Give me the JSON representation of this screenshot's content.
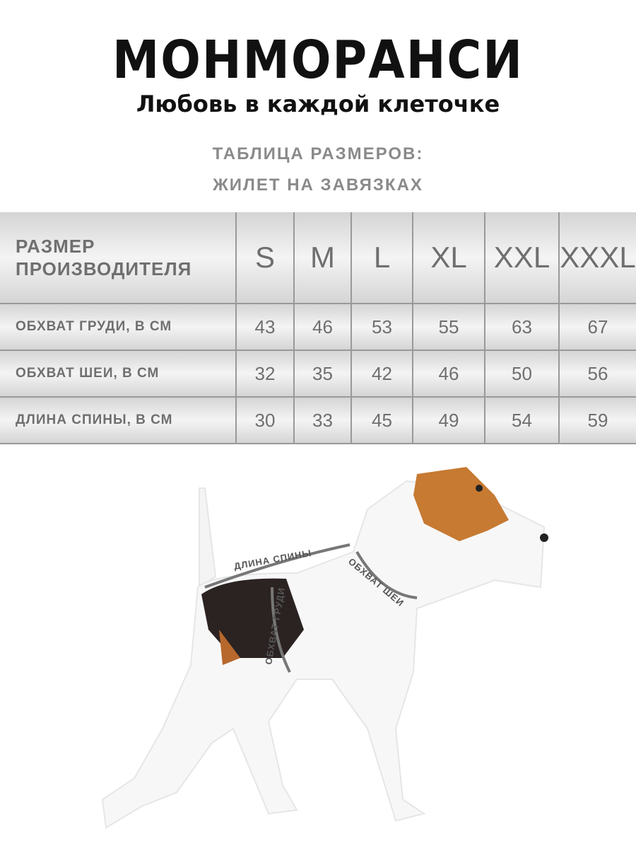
{
  "brand": {
    "name": "МОНМОРАНСИ",
    "tagline": "Любовь в каждой клеточке",
    "dot_colors": [
      "#d62b2b",
      "#1e8a4a"
    ]
  },
  "title": {
    "line1": "ТАБЛИЦА РАЗМЕРОВ:",
    "line2": "ЖИЛЕТ НА ЗАВЯЗКАХ"
  },
  "table": {
    "header_label_line1": "РАЗМЕР",
    "header_label_line2": "ПРОИЗВОДИТЕЛЯ",
    "sizes": [
      "S",
      "M",
      "L",
      "XL",
      "XXL",
      "XXXL"
    ],
    "rows": [
      {
        "label": "ОБХВАТ ГРУДИ, В СМ",
        "values": [
          "43",
          "46",
          "53",
          "55",
          "63",
          "67"
        ]
      },
      {
        "label": "ОБХВАТ ШЕИ, В СМ",
        "values": [
          "32",
          "35",
          "42",
          "46",
          "50",
          "56"
        ]
      },
      {
        "label": "ДЛИНА СПИНЫ, В СМ",
        "values": [
          "30",
          "33",
          "45",
          "49",
          "54",
          "59"
        ]
      }
    ]
  },
  "diagram": {
    "back_length": "ДЛИНА СПИНЫ",
    "neck_girth": "ОБХВАТ ШЕИ",
    "chest_girth": "ОБХВАТ ГРУДИ"
  }
}
